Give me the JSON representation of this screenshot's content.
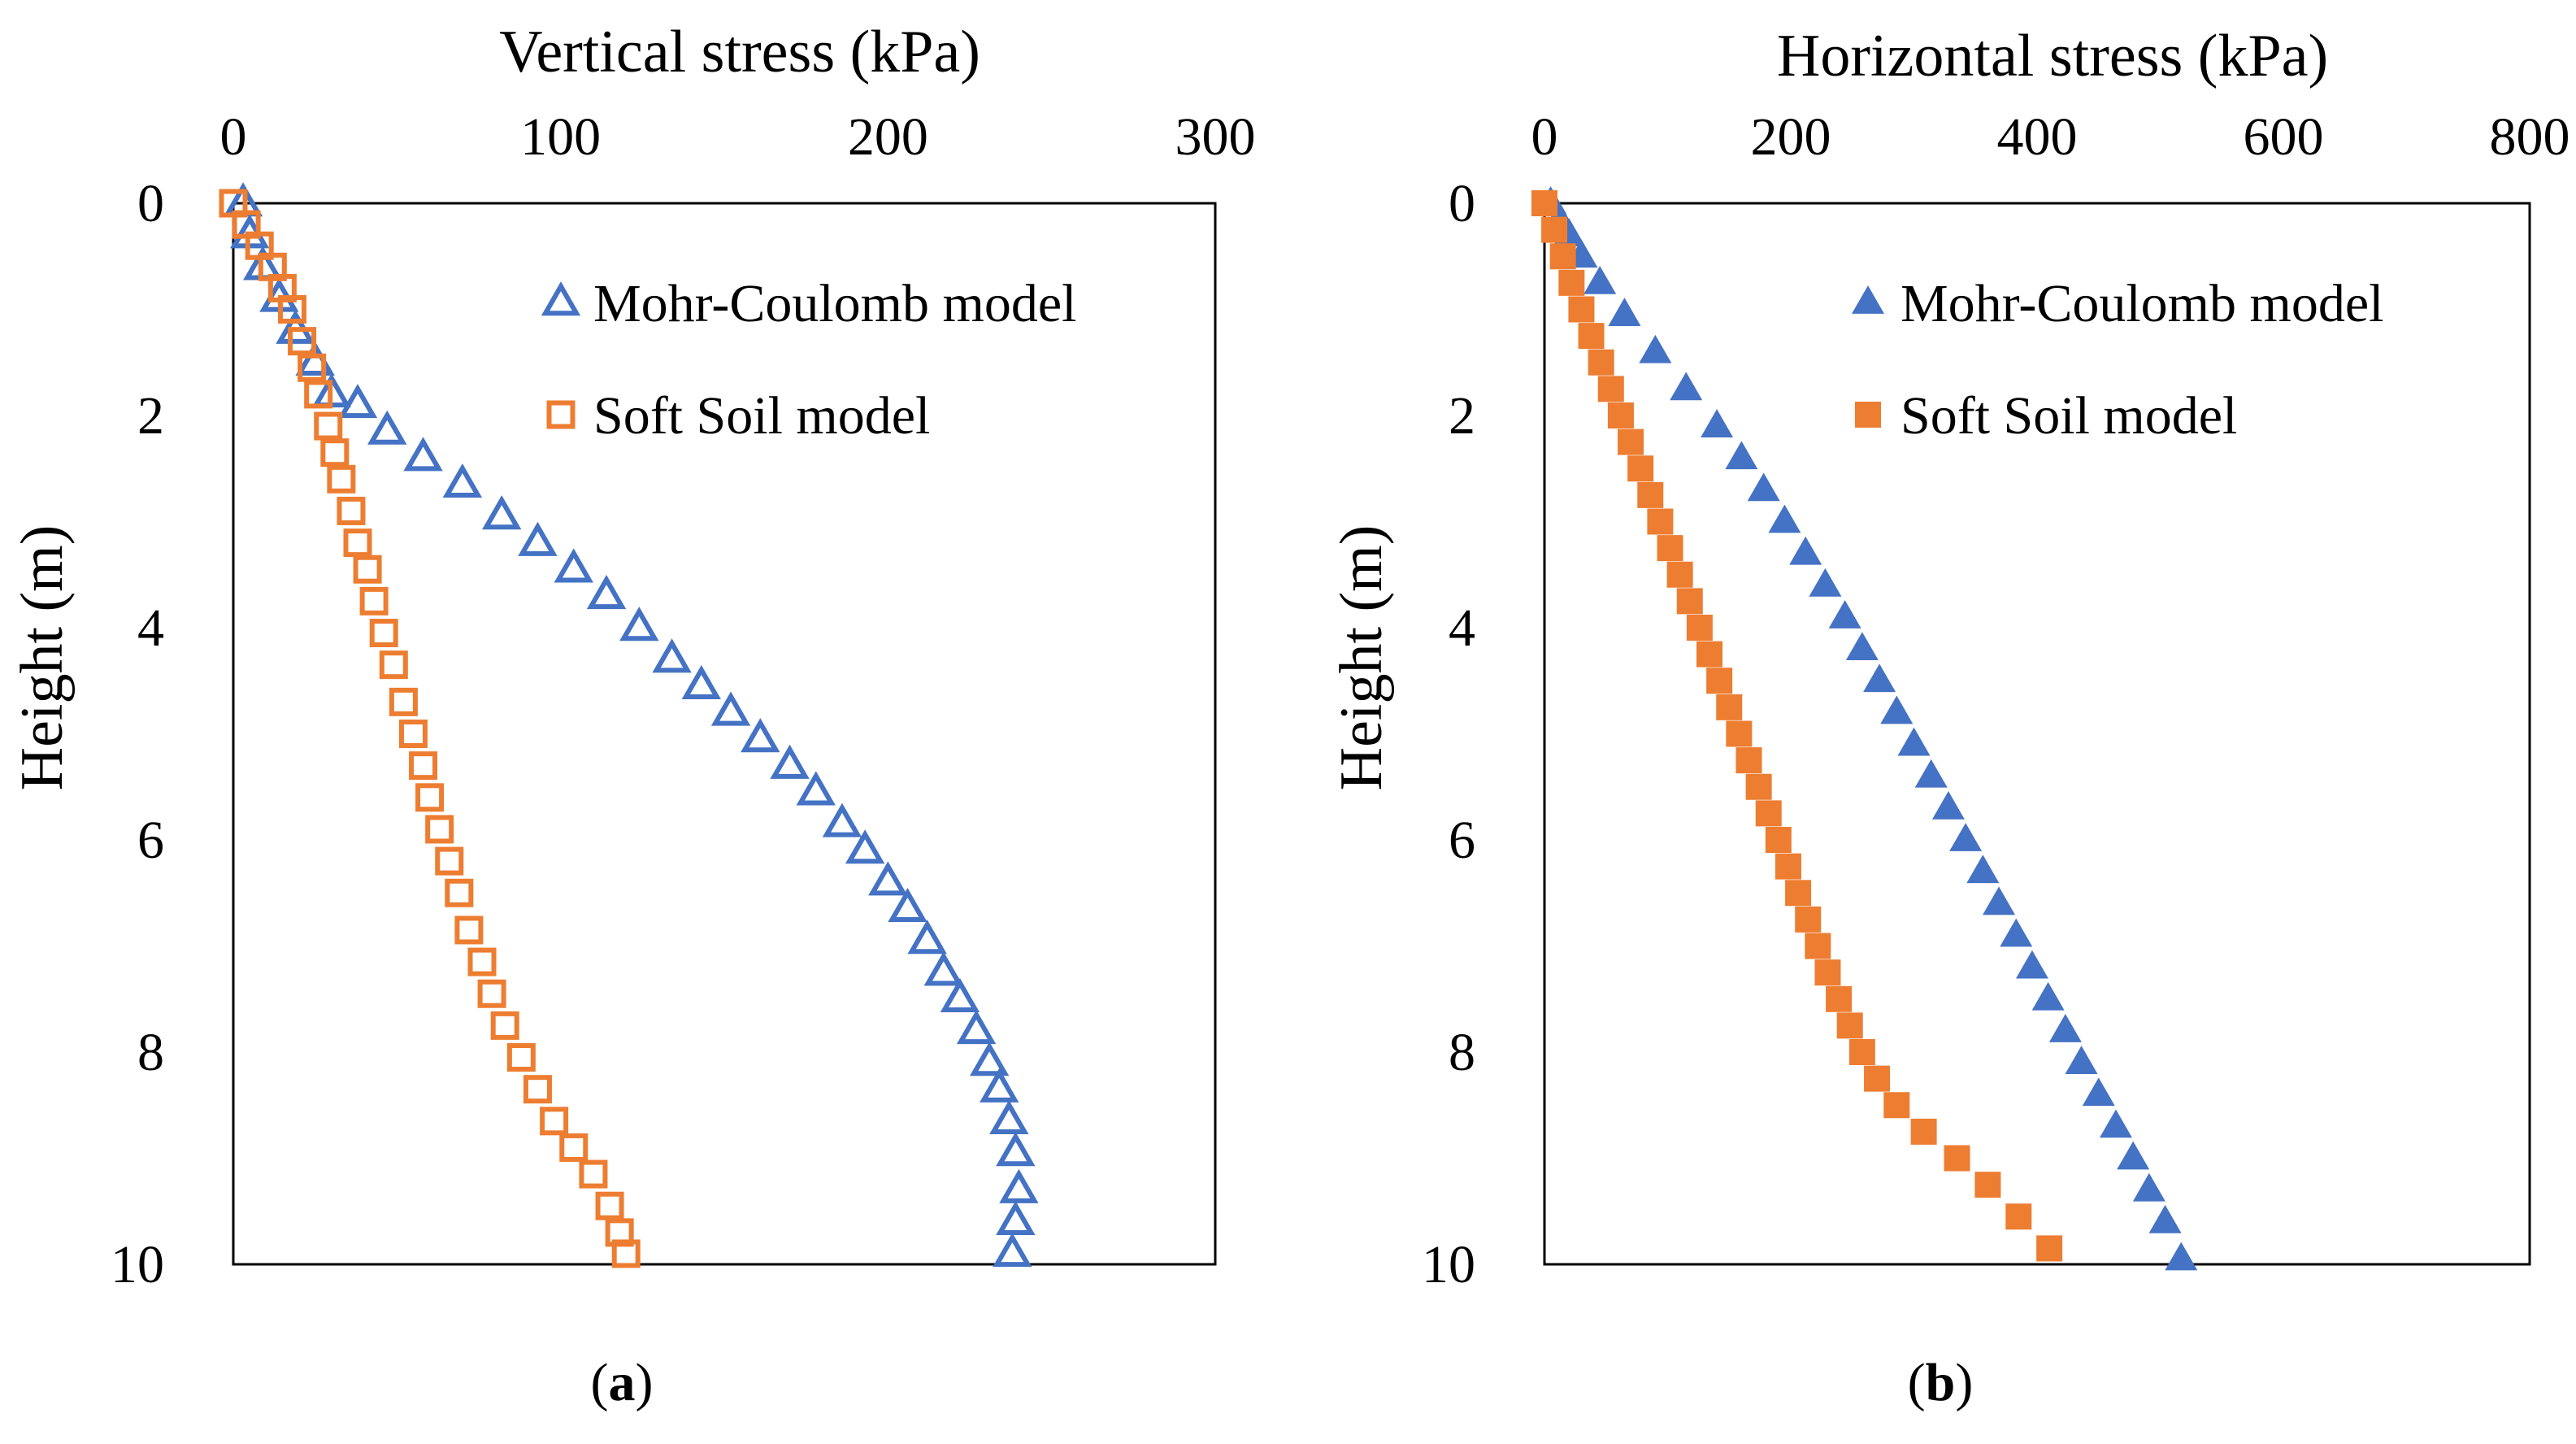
{
  "figure": {
    "panel_labels": [
      {
        "open": "(",
        "letter": "a",
        "close": ")"
      },
      {
        "open": "(",
        "letter": "b",
        "close": ")"
      }
    ]
  },
  "colors": {
    "mohr_coulomb": "#4472C4",
    "soft_soil": "#ED7D31",
    "axes": "#000000"
  },
  "chart_data": [
    {
      "panel": "a",
      "type": "scatter",
      "title": "",
      "xlabel": "Vertical stress (kPa)",
      "ylabel": "Height (m)",
      "xlim": [
        0,
        300
      ],
      "ylim": [
        0,
        10
      ],
      "y_inverted": true,
      "x_axis_position": "top",
      "xticks": [
        0,
        100,
        200,
        300
      ],
      "yticks": [
        0,
        2,
        4,
        6,
        8,
        10
      ],
      "legend_position": "top-right",
      "series": [
        {
          "name": "Mohr-Coulomb model",
          "marker": "triangle-open",
          "color": "#4472C4",
          "points": [
            [
              3,
              0
            ],
            [
              5,
              0.3
            ],
            [
              9,
              0.6
            ],
            [
              14,
              0.9
            ],
            [
              19,
              1.2
            ],
            [
              25,
              1.5
            ],
            [
              30,
              1.8
            ],
            [
              38,
              1.9
            ],
            [
              47,
              2.15
            ],
            [
              58,
              2.4
            ],
            [
              70,
              2.65
            ],
            [
              82,
              2.95
            ],
            [
              93,
              3.2
            ],
            [
              104,
              3.45
            ],
            [
              114,
              3.7
            ],
            [
              124,
              4
            ],
            [
              134,
              4.3
            ],
            [
              143,
              4.55
            ],
            [
              152,
              4.8
            ],
            [
              161,
              5.05
            ],
            [
              170,
              5.3
            ],
            [
              178,
              5.55
            ],
            [
              186,
              5.85
            ],
            [
              193,
              6.1
            ],
            [
              200,
              6.4
            ],
            [
              206,
              6.65
            ],
            [
              212,
              6.95
            ],
            [
              217,
              7.25
            ],
            [
              222,
              7.5
            ],
            [
              227,
              7.8
            ],
            [
              231,
              8.1
            ],
            [
              234,
              8.35
            ],
            [
              237,
              8.65
            ],
            [
              239,
              8.95
            ],
            [
              240,
              9.3
            ],
            [
              239,
              9.6
            ],
            [
              238,
              9.9
            ]
          ]
        },
        {
          "name": "Soft Soil model",
          "marker": "square-open",
          "color": "#ED7D31",
          "points": [
            [
              0,
              0
            ],
            [
              4,
              0.2
            ],
            [
              8,
              0.4
            ],
            [
              12,
              0.6
            ],
            [
              15,
              0.8
            ],
            [
              18,
              1
            ],
            [
              21,
              1.3
            ],
            [
              24,
              1.55
            ],
            [
              26,
              1.8
            ],
            [
              29,
              2.1
            ],
            [
              31,
              2.35
            ],
            [
              33,
              2.6
            ],
            [
              36,
              2.9
            ],
            [
              38,
              3.2
            ],
            [
              41,
              3.45
            ],
            [
              43,
              3.75
            ],
            [
              46,
              4.05
            ],
            [
              49,
              4.35
            ],
            [
              52,
              4.7
            ],
            [
              55,
              5
            ],
            [
              58,
              5.3
            ],
            [
              60,
              5.6
            ],
            [
              63,
              5.9
            ],
            [
              66,
              6.2
            ],
            [
              69,
              6.5
            ],
            [
              72,
              6.85
            ],
            [
              76,
              7.15
            ],
            [
              79,
              7.45
            ],
            [
              83,
              7.75
            ],
            [
              88,
              8.05
            ],
            [
              93,
              8.35
            ],
            [
              98,
              8.65
            ],
            [
              104,
              8.9
            ],
            [
              110,
              9.15
            ],
            [
              115,
              9.45
            ],
            [
              118,
              9.7
            ],
            [
              120,
              9.9
            ]
          ]
        }
      ]
    },
    {
      "panel": "b",
      "type": "scatter",
      "title": "",
      "xlabel": "Horizontal stress (kPa)",
      "ylabel": "Height (m)",
      "xlim": [
        0,
        800
      ],
      "ylim": [
        0,
        10
      ],
      "y_inverted": true,
      "x_axis_position": "top",
      "xticks": [
        0,
        200,
        400,
        600,
        800
      ],
      "yticks": [
        0,
        2,
        4,
        6,
        8,
        10
      ],
      "legend_position": "top-right",
      "series": [
        {
          "name": "Mohr-Coulomb model",
          "marker": "triangle-filled",
          "color": "#4472C4",
          "points": [
            [
              5,
              0
            ],
            [
              12,
              0.15
            ],
            [
              20,
              0.3
            ],
            [
              30,
              0.5
            ],
            [
              45,
              0.75
            ],
            [
              65,
              1.05
            ],
            [
              90,
              1.4
            ],
            [
              115,
              1.75
            ],
            [
              140,
              2.1
            ],
            [
              160,
              2.4
            ],
            [
              178,
              2.7
            ],
            [
              195,
              3
            ],
            [
              212,
              3.3
            ],
            [
              228,
              3.6
            ],
            [
              244,
              3.9
            ],
            [
              258,
              4.2
            ],
            [
              272,
              4.5
            ],
            [
              286,
              4.8
            ],
            [
              300,
              5.1
            ],
            [
              314,
              5.4
            ],
            [
              328,
              5.7
            ],
            [
              342,
              6
            ],
            [
              356,
              6.3
            ],
            [
              369,
              6.6
            ],
            [
              383,
              6.9
            ],
            [
              396,
              7.2
            ],
            [
              409,
              7.5
            ],
            [
              423,
              7.8
            ],
            [
              436,
              8.1
            ],
            [
              450,
              8.4
            ],
            [
              464,
              8.7
            ],
            [
              478,
              9
            ],
            [
              491,
              9.3
            ],
            [
              504,
              9.6
            ],
            [
              517,
              9.95
            ]
          ]
        },
        {
          "name": "Soft Soil model",
          "marker": "square-filled",
          "color": "#ED7D31",
          "points": [
            [
              0,
              0
            ],
            [
              8,
              0.25
            ],
            [
              15,
              0.5
            ],
            [
              22,
              0.75
            ],
            [
              30,
              1
            ],
            [
              38,
              1.25
            ],
            [
              46,
              1.5
            ],
            [
              54,
              1.75
            ],
            [
              62,
              2
            ],
            [
              70,
              2.25
            ],
            [
              78,
              2.5
            ],
            [
              86,
              2.75
            ],
            [
              94,
              3
            ],
            [
              102,
              3.25
            ],
            [
              110,
              3.5
            ],
            [
              118,
              3.75
            ],
            [
              126,
              4
            ],
            [
              134,
              4.25
            ],
            [
              142,
              4.5
            ],
            [
              150,
              4.75
            ],
            [
              158,
              5
            ],
            [
              166,
              5.25
            ],
            [
              174,
              5.5
            ],
            [
              182,
              5.75
            ],
            [
              190,
              6
            ],
            [
              198,
              6.25
            ],
            [
              206,
              6.5
            ],
            [
              214,
              6.75
            ],
            [
              222,
              7
            ],
            [
              230,
              7.25
            ],
            [
              239,
              7.5
            ],
            [
              248,
              7.75
            ],
            [
              258,
              8
            ],
            [
              270,
              8.25
            ],
            [
              286,
              8.5
            ],
            [
              308,
              8.75
            ],
            [
              335,
              9
            ],
            [
              360,
              9.25
            ],
            [
              385,
              9.55
            ],
            [
              410,
              9.85
            ]
          ]
        }
      ]
    }
  ]
}
